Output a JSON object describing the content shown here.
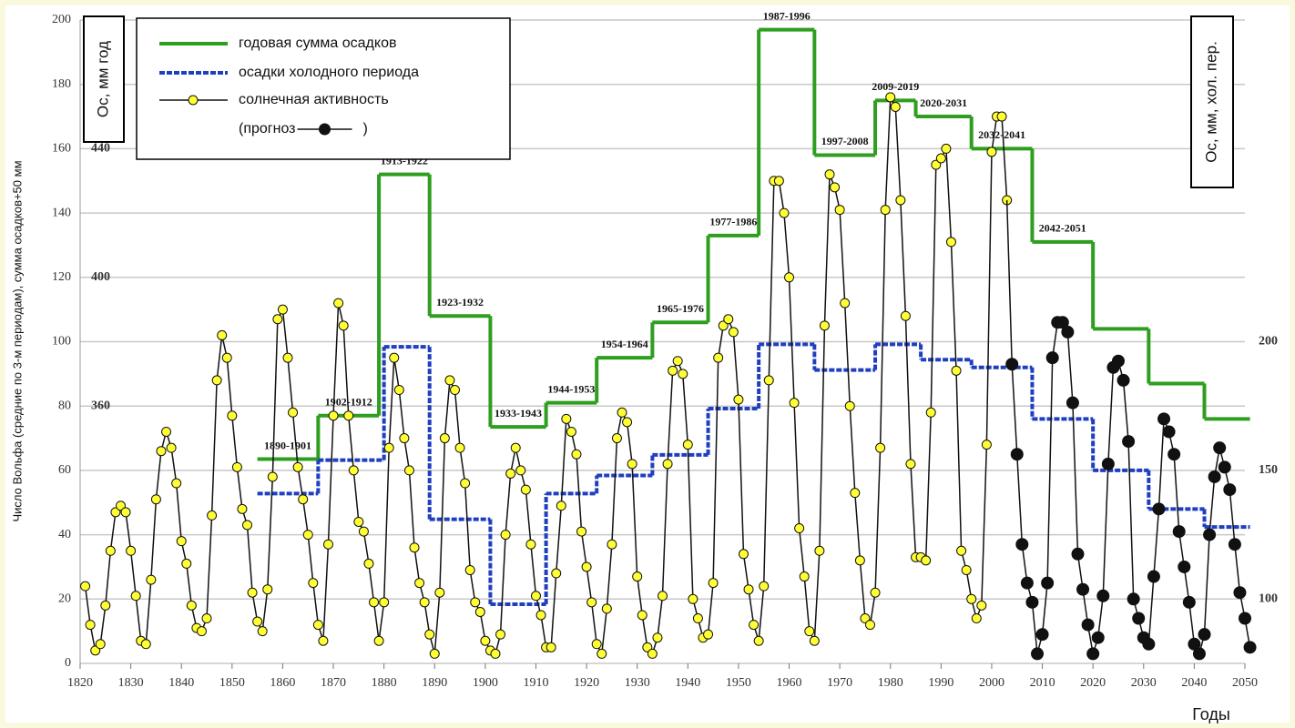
{
  "chart_data": {
    "type": "step-line",
    "ylabel": "Число Вольфа (средние по 3-м периодам), сумма осадков+50 мм",
    "xlabel": "Годы",
    "y_box_label": "Ос, мм год",
    "y2_box_label": "Ос, мм, хол. пер.",
    "legend_close": ")",
    "xlim": [
      1820,
      2050
    ],
    "xticks": [
      1820,
      1830,
      1840,
      1850,
      1860,
      1870,
      1880,
      1890,
      1900,
      1910,
      1920,
      1930,
      1940,
      1950,
      1960,
      1970,
      1980,
      1990,
      2000,
      2010,
      2020,
      2030,
      2040,
      2050
    ],
    "ylim": [
      0,
      200
    ],
    "yticks": [
      0,
      20,
      40,
      60,
      80,
      100,
      120,
      140,
      160,
      180,
      200
    ],
    "y2lim": [
      75,
      325
    ],
    "y2ticks": [
      100,
      150,
      200
    ],
    "y3ticks": [
      {
        "value": 160,
        "label": "440"
      },
      {
        "value": 120,
        "label": "400"
      },
      {
        "value": 80,
        "label": "360"
      }
    ],
    "grid": true,
    "series": [
      {
        "name": "годовая сумма осадков",
        "color": "#2e9e1f",
        "kind": "step",
        "edges": [
          1855,
          1867,
          1879,
          1889,
          1901,
          1912,
          1922,
          1933,
          1944,
          1954,
          1965,
          1977,
          1985,
          1996,
          2008,
          2020,
          2031,
          2042,
          2051
        ],
        "values": [
          63.5,
          77,
          152,
          108,
          73.5,
          81,
          95,
          106,
          133,
          197,
          158,
          175,
          170,
          160,
          131,
          104,
          87,
          76
        ],
        "segment_labels": [
          "1890-1901",
          "1902-1912",
          "1913-1922",
          "1923-1932",
          "1933-1943",
          "1944-1953",
          "1954-1964",
          "1965-1976",
          "1977-1986",
          "1987-1996",
          "1997-2008",
          "2009-2019",
          "2020-2031",
          "2032-2041",
          "2042-2051",
          null,
          null,
          null
        ]
      },
      {
        "name": "осадки холодного периода",
        "color": "#1f3fbf",
        "kind": "step",
        "dashed": true,
        "axis": "y2",
        "edges": [
          1855,
          1867,
          1880,
          1889,
          1901,
          1912,
          1922,
          1933,
          1944,
          1954,
          1965,
          1977,
          1986,
          1996,
          2008,
          2020,
          2031,
          2042,
          2051
        ],
        "values": [
          141,
          154,
          198,
          131,
          98,
          141,
          148,
          156,
          174,
          199,
          189,
          199,
          193,
          190,
          170,
          150,
          135,
          128
        ]
      },
      {
        "name": "солнечная активность",
        "color": "#ffff33",
        "kind": "points",
        "x": [
          1821,
          1822,
          1823,
          1824,
          1825,
          1826,
          1827,
          1828,
          1829,
          1830,
          1831,
          1832,
          1833,
          1834,
          1835,
          1836,
          1837,
          1838,
          1839,
          1840,
          1841,
          1842,
          1843,
          1844,
          1845,
          1846,
          1847,
          1848,
          1849,
          1850,
          1851,
          1852,
          1853,
          1854,
          1855,
          1856,
          1857,
          1858,
          1859,
          1860,
          1861,
          1862,
          1863,
          1864,
          1865,
          1866,
          1867,
          1868,
          1869,
          1870,
          1871,
          1872,
          1873,
          1874,
          1875,
          1876,
          1877,
          1878,
          1879,
          1880,
          1881,
          1882,
          1883,
          1884,
          1885,
          1886,
          1887,
          1888,
          1889,
          1890,
          1891,
          1892,
          1893,
          1894,
          1895,
          1896,
          1897,
          1898,
          1899,
          1900,
          1901,
          1902,
          1903,
          1904,
          1905,
          1906,
          1907,
          1908,
          1909,
          1910,
          1911,
          1912,
          1913,
          1914,
          1915,
          1916,
          1917,
          1918,
          1919,
          1920,
          1921,
          1922,
          1923,
          1924,
          1925,
          1926,
          1927,
          1928,
          1929,
          1930,
          1931,
          1932,
          1933,
          1934,
          1935,
          1936,
          1937,
          1938,
          1939,
          1940,
          1941,
          1942,
          1943,
          1944,
          1945,
          1946,
          1947,
          1948,
          1949,
          1950,
          1951,
          1952,
          1953,
          1954,
          1955,
          1956,
          1957,
          1958,
          1959,
          1960,
          1961,
          1962,
          1963,
          1964,
          1965,
          1966,
          1967,
          1968,
          1969,
          1970,
          1971,
          1972,
          1973,
          1974,
          1975,
          1976,
          1977,
          1978,
          1979,
          1980,
          1981,
          1982,
          1983,
          1984,
          1985,
          1986,
          1987,
          1988,
          1989,
          1990,
          1991,
          1992,
          1993,
          1994,
          1995,
          1996,
          1997,
          1998,
          1999,
          2000,
          2001,
          2002,
          2003
        ],
        "values": [
          24,
          12,
          4,
          6,
          18,
          35,
          47,
          49,
          47,
          35,
          21,
          7,
          6,
          26,
          51,
          66,
          72,
          67,
          56,
          38,
          31,
          18,
          11,
          10,
          14,
          46,
          88,
          102,
          95,
          77,
          61,
          48,
          43,
          22,
          13,
          10,
          23,
          58,
          107,
          110,
          95,
          78,
          61,
          51,
          40,
          25,
          12,
          7,
          37,
          77,
          112,
          105,
          77,
          60,
          44,
          41,
          31,
          19,
          7,
          19,
          67,
          95,
          85,
          70,
          60,
          36,
          25,
          19,
          9,
          3,
          22,
          70,
          88,
          85,
          67,
          56,
          29,
          19,
          16,
          7,
          4,
          3,
          9,
          40,
          59,
          67,
          60,
          54,
          37,
          21,
          15,
          5,
          5,
          28,
          49,
          76,
          72,
          65,
          41,
          30,
          19,
          6,
          3,
          17,
          37,
          70,
          78,
          75,
          62,
          27,
          15,
          5,
          3,
          8,
          21,
          62,
          91,
          94,
          90,
          68,
          20,
          14,
          8,
          9,
          25,
          95,
          105,
          107,
          103,
          82,
          34,
          23,
          12,
          7,
          24,
          88,
          150,
          150,
          140,
          120,
          81,
          42,
          27,
          10,
          7,
          35,
          105,
          152,
          148,
          141,
          112,
          80,
          53,
          32,
          14,
          12,
          22,
          67,
          141,
          176,
          173,
          144,
          108,
          62,
          33,
          33,
          32,
          78,
          155,
          157,
          160,
          131,
          91,
          35,
          29,
          20,
          14,
          18,
          68,
          159,
          170,
          170,
          144
        ]
      },
      {
        "name": "(прогноз",
        "color": "#111111",
        "kind": "points",
        "x": [
          2004,
          2005,
          2006,
          2007,
          2008,
          2009,
          2010,
          2011,
          2012,
          2013,
          2014,
          2015,
          2016,
          2017,
          2018,
          2019,
          2020,
          2021,
          2022,
          2023,
          2024,
          2025,
          2026,
          2027,
          2028,
          2029,
          2030,
          2031,
          2032,
          2033,
          2034,
          2035,
          2036,
          2037,
          2038,
          2039,
          2040,
          2041,
          2042,
          2043,
          2044,
          2045,
          2046,
          2047,
          2048,
          2049,
          2050,
          2051
        ],
        "values": [
          93,
          65,
          37,
          25,
          19,
          3,
          9,
          25,
          95,
          106,
          106,
          103,
          81,
          34,
          23,
          12,
          3,
          8,
          21,
          62,
          92,
          94,
          88,
          69,
          20,
          14,
          8,
          6,
          27,
          48,
          76,
          72,
          65,
          41,
          30,
          19,
          6,
          3,
          9,
          40,
          58,
          67,
          61,
          54,
          37,
          22,
          14,
          5
        ]
      }
    ]
  }
}
